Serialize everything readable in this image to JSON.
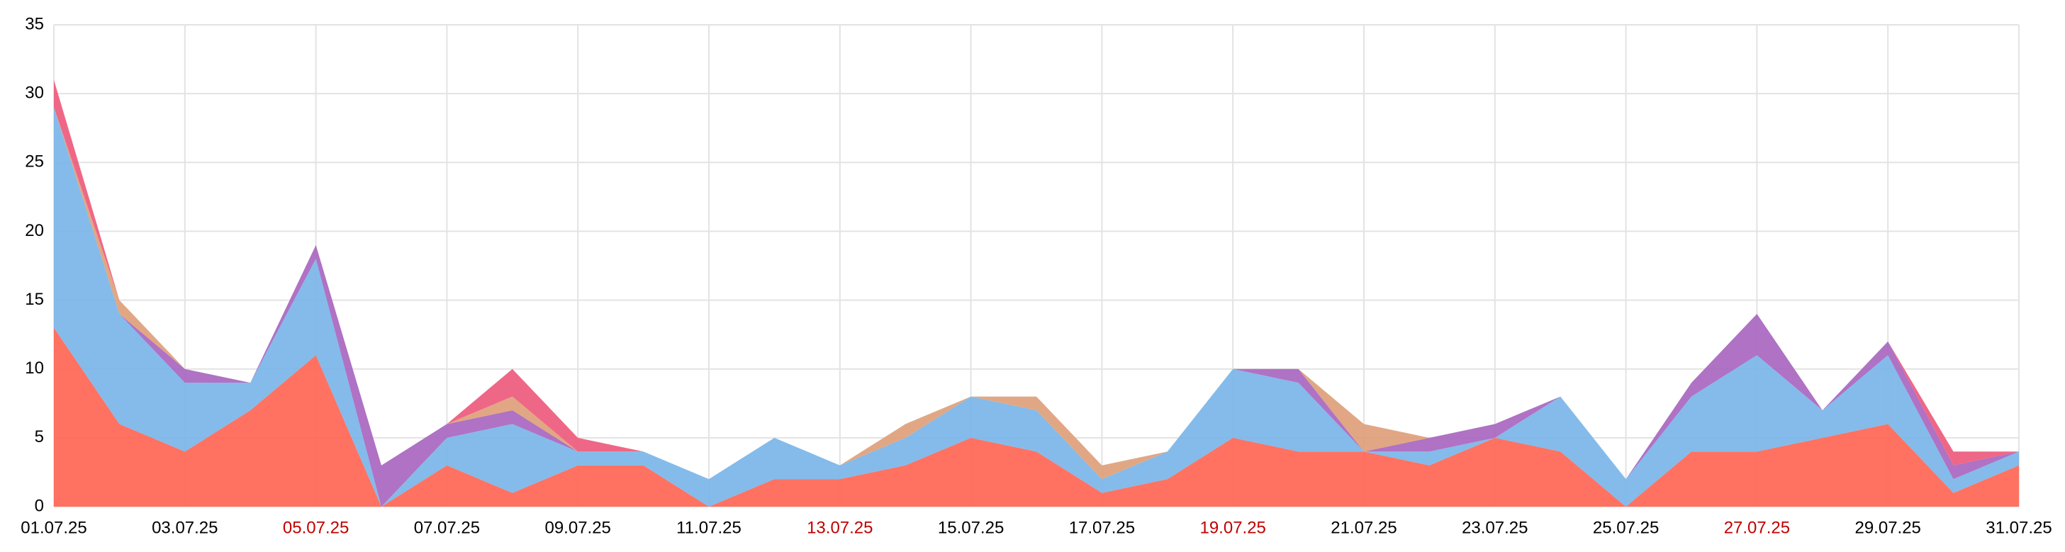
{
  "chart_data": {
    "type": "stacked_area",
    "categories": [
      "01.07.25",
      null,
      "03.07.25",
      null,
      "05.07.25",
      null,
      "07.07.25",
      null,
      "09.07.25",
      null,
      "11.07.25",
      null,
      "13.07.25",
      null,
      "15.07.25",
      null,
      "17.07.25",
      null,
      "19.07.25",
      null,
      "21.07.25",
      null,
      "23.07.25",
      null,
      "25.07.25",
      null,
      "27.07.25",
      null,
      "29.07.25",
      null,
      "31.07.25"
    ],
    "tick_label_colors": [
      "#000000",
      null,
      "#000000",
      null,
      "#c00000",
      null,
      "#000000",
      null,
      "#000000",
      null,
      "#000000",
      null,
      "#c00000",
      null,
      "#000000",
      null,
      "#000000",
      null,
      "#c00000",
      null,
      "#000000",
      null,
      "#000000",
      null,
      "#000000",
      null,
      "#c00000",
      null,
      "#000000",
      null,
      "#000000"
    ],
    "series": [
      {
        "color": "#ff6655",
        "values": [
          13,
          6,
          4,
          7,
          11,
          0,
          3,
          1,
          3,
          3,
          0,
          2,
          2,
          3,
          5,
          4,
          1,
          2,
          5,
          4,
          4,
          3,
          5,
          4,
          0,
          4,
          4,
          5,
          6,
          1,
          3
        ]
      },
      {
        "color": "#7ab5e8",
        "values": [
          16,
          8,
          5,
          2,
          7,
          0,
          2,
          5,
          1,
          1,
          2,
          3,
          1,
          2,
          3,
          3,
          1,
          2,
          5,
          5,
          0,
          1,
          0,
          4,
          2,
          4,
          7,
          2,
          5,
          1,
          1
        ]
      },
      {
        "color": "#a866bf",
        "values": [
          0,
          0,
          1,
          0,
          1,
          3,
          1,
          1,
          0,
          0,
          0,
          0,
          0,
          0,
          0,
          0,
          0,
          0,
          0,
          1,
          0,
          1,
          1,
          0,
          0,
          1,
          3,
          0,
          1,
          1,
          0
        ]
      },
      {
        "color": "#dea07a",
        "values": [
          0,
          1,
          0,
          0,
          0,
          0,
          0,
          1,
          0,
          0,
          0,
          0,
          0,
          1,
          0,
          1,
          1,
          0,
          0,
          0,
          2,
          0,
          0,
          0,
          0,
          0,
          0,
          0,
          0,
          0,
          0
        ]
      },
      {
        "color": "#ee5a7c",
        "values": [
          2,
          0,
          0,
          0,
          0,
          0,
          0,
          2,
          1,
          0,
          0,
          0,
          0,
          0,
          0,
          0,
          0,
          0,
          0,
          0,
          0,
          0,
          0,
          0,
          0,
          0,
          0,
          0,
          0,
          1,
          0
        ]
      }
    ],
    "ylim": [
      0,
      35
    ],
    "yticks": [
      0,
      5,
      10,
      15,
      20,
      25,
      30,
      35
    ],
    "grid": true
  }
}
